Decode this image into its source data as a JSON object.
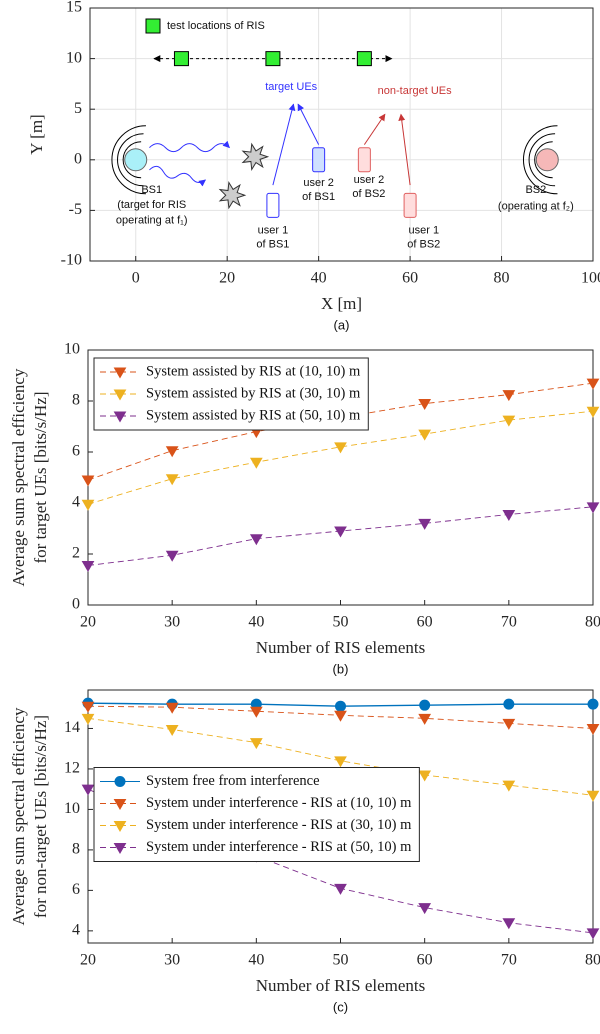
{
  "chart_data": [
    {
      "type": "scatter",
      "caption": "(a)",
      "xlabel": "X [m]",
      "ylabel": "Y [m]",
      "xlim": [
        -10,
        100
      ],
      "xticks": [
        0,
        20,
        40,
        60,
        80,
        100
      ],
      "ylim": [
        -10,
        15
      ],
      "yticks": [
        -10,
        -5,
        0,
        5,
        10,
        15
      ],
      "grid": true,
      "legend": "upper left",
      "series": [
        {
          "name": "test locations of RIS",
          "color": "#33ee33",
          "marker": "s",
          "x": [
            10,
            30,
            50
          ],
          "values": [
            10,
            10,
            10
          ]
        }
      ],
      "annotations": [
        "target UEs",
        "non-target UEs",
        "BS1",
        "(target for RIS",
        "operating at f₁)",
        "user 1",
        "of BS1",
        "user 2",
        "of BS1",
        "user 2",
        "of BS2",
        "user 1",
        "of BS2",
        "BS2",
        "(operating at f₂)"
      ]
    },
    {
      "type": "line",
      "caption": "(b)",
      "xlabel": "Number of RIS elements",
      "ylabel": [
        "Average sum spectral efficiency",
        "for target UEs [bits/s/Hz]"
      ],
      "x": [
        20,
        30,
        40,
        50,
        60,
        70,
        80
      ],
      "xlim": [
        20,
        80
      ],
      "xticks": [
        20,
        30,
        40,
        50,
        60,
        70,
        80
      ],
      "ylim": [
        0,
        10
      ],
      "yticks": [
        0,
        2,
        4,
        6,
        8,
        10
      ],
      "grid": false,
      "legend": "upper left",
      "series": [
        {
          "name": "System assisted by RIS at (10, 10) m",
          "color": "#d95319",
          "marker": "v",
          "linestyle": "--",
          "values": [
            4.9,
            6.05,
            6.8,
            7.35,
            7.9,
            8.25,
            8.7
          ]
        },
        {
          "name": "System assisted by RIS at (30, 10) m",
          "color": "#edb120",
          "marker": "v",
          "linestyle": "--",
          "values": [
            3.95,
            4.95,
            5.6,
            6.2,
            6.7,
            7.25,
            7.6
          ]
        },
        {
          "name": "System assisted by RIS at (50, 10) m",
          "color": "#7e2f8e",
          "marker": "v",
          "linestyle": "--",
          "values": [
            1.55,
            1.95,
            2.6,
            2.9,
            3.2,
            3.55,
            3.85
          ]
        }
      ]
    },
    {
      "type": "line",
      "caption": "(c)",
      "xlabel": "Number of RIS elements",
      "ylabel": [
        "Average sum spectral efficiency",
        "for non-target UEs [bits/s/Hz]"
      ],
      "x": [
        20,
        30,
        40,
        50,
        60,
        70,
        80
      ],
      "xlim": [
        20,
        80
      ],
      "xticks": [
        20,
        30,
        40,
        50,
        60,
        70,
        80
      ],
      "ylim": [
        3.4,
        15.9
      ],
      "yticks": [
        4,
        6,
        8,
        10,
        12,
        14
      ],
      "grid": false,
      "legend": "center left",
      "series": [
        {
          "name": "System free from interference",
          "color": "#0072bd",
          "marker": "o",
          "linestyle": "-",
          "values": [
            15.25,
            15.2,
            15.2,
            15.1,
            15.15,
            15.2,
            15.2
          ]
        },
        {
          "name": "System under interference - RIS at (10, 10) m",
          "color": "#d95319",
          "marker": "v",
          "linestyle": "--",
          "values": [
            15.1,
            15.05,
            14.85,
            14.65,
            14.5,
            14.25,
            14.0
          ]
        },
        {
          "name": "System under interference - RIS at (30, 10) m",
          "color": "#edb120",
          "marker": "v",
          "linestyle": "--",
          "values": [
            14.5,
            13.95,
            13.3,
            12.4,
            11.7,
            11.2,
            10.7
          ]
        },
        {
          "name": "System under interference - RIS at (50, 10) m",
          "color": "#7e2f8e",
          "marker": "v",
          "linestyle": "--",
          "values": [
            11.0,
            9.2,
            7.7,
            6.1,
            5.15,
            4.4,
            3.9
          ]
        }
      ]
    }
  ]
}
